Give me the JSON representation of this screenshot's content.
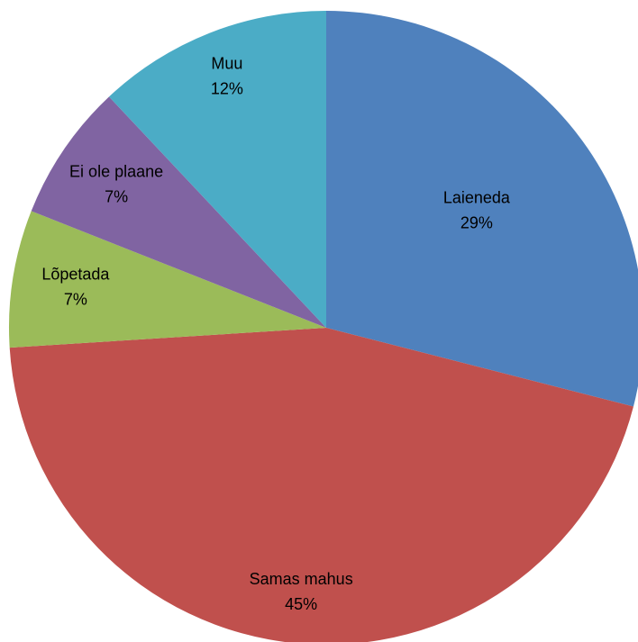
{
  "chart_data": {
    "type": "pie",
    "categories": [
      "Laieneda",
      "Samas mahus",
      "Lõpetada",
      "Ei ole plaane",
      "Muu"
    ],
    "values": [
      29,
      45,
      7,
      7,
      12
    ],
    "value_labels": [
      "29%",
      "45%",
      "7%",
      "7%",
      "12%"
    ],
    "colors": [
      "#4f81bd",
      "#c0504d",
      "#9bbb59",
      "#8064a2",
      "#4bacc6"
    ]
  }
}
